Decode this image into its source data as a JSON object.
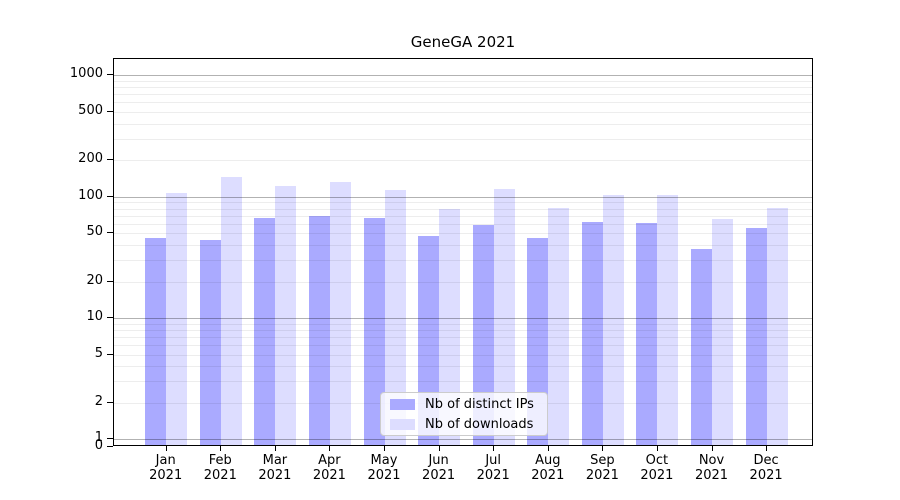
{
  "title": "GeneGA 2021",
  "colors": {
    "bar_distinct_ips": "#aaaaff",
    "bar_downloads": "#ddddff",
    "grid_major": "#b2b2b2",
    "grid_minor": "#ededed",
    "axis": "#000000",
    "legend_border": "#cccccc",
    "background": "#ffffff"
  },
  "legend": {
    "items": [
      {
        "label": "Nb of distinct IPs",
        "color": "#aaaaff"
      },
      {
        "label": "Nb of downloads",
        "color": "#ddddff"
      }
    ]
  },
  "chart_data": {
    "type": "bar",
    "title": "GeneGA 2021",
    "categories": [
      "Jan 2021",
      "Feb 2021",
      "Mar 2021",
      "Apr 2021",
      "May 2021",
      "Jun 2021",
      "Jul 2021",
      "Aug 2021",
      "Sep 2021",
      "Oct 2021",
      "Nov 2021",
      "Dec 2021"
    ],
    "category_months": [
      "Jan",
      "Feb",
      "Mar",
      "Apr",
      "May",
      "Jun",
      "Jul",
      "Aug",
      "Sep",
      "Oct",
      "Nov",
      "Dec"
    ],
    "category_year": "2021",
    "series": [
      {
        "name": "Nb of distinct IPs",
        "color": "#aaaaff",
        "values": [
          44,
          42,
          64,
          67,
          64,
          46,
          56,
          44,
          60,
          59,
          36,
          53
        ]
      },
      {
        "name": "Nb of downloads",
        "color": "#ddddff",
        "values": [
          104,
          139,
          118,
          127,
          110,
          77,
          112,
          78,
          100,
          100,
          63,
          78
        ]
      }
    ],
    "xlabel": "",
    "ylabel": "",
    "yscale": "log",
    "ylim": [
      0,
      1400
    ],
    "y_tick_values": [
      0,
      1,
      2,
      5,
      10,
      20,
      50,
      100,
      200,
      500,
      1000
    ],
    "y_major_gridlines": [
      1,
      10,
      100,
      1000
    ],
    "y_minor_gridlines": [
      2,
      3,
      4,
      5,
      6,
      7,
      8,
      9,
      20,
      30,
      40,
      50,
      60,
      70,
      80,
      90,
      200,
      300,
      400,
      500,
      600,
      700,
      800,
      900
    ],
    "grid": true,
    "legend_position": "lower center"
  }
}
